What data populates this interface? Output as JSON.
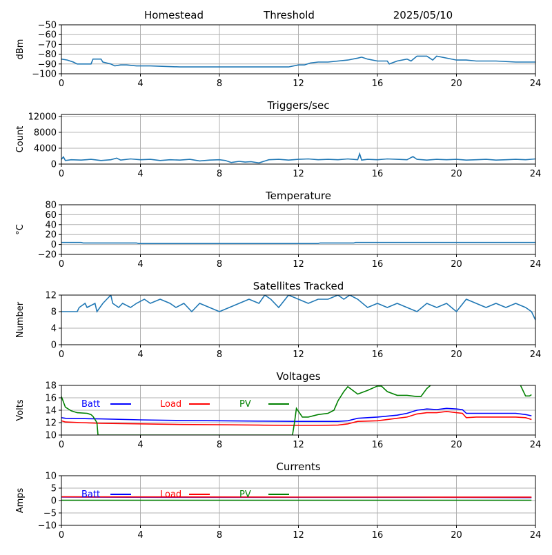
{
  "header": {
    "station": "Homestead",
    "mode": "Threshold",
    "date": "2025/05/10"
  },
  "colors": {
    "line": "#1f77b4",
    "batt": "#0000ff",
    "load": "#ff0000",
    "pv": "#008000",
    "grid": "#b0b0b0"
  },
  "chart_data": [
    {
      "id": "signal",
      "type": "line",
      "title": "",
      "ylabel": "dBm",
      "xlim": [
        0,
        24
      ],
      "ylim": [
        -100,
        -50
      ],
      "xticks": [
        0,
        4,
        8,
        12,
        16,
        20,
        24
      ],
      "xtick_labels": [
        "0",
        "4",
        "8",
        "12",
        "16",
        "20",
        "24"
      ],
      "yticks": [
        -100,
        -90,
        -80,
        -70,
        -60,
        -50
      ],
      "ytick_labels": [
        "−100",
        "−90",
        "−80",
        "−70",
        "−60",
        "−50"
      ],
      "grid": true,
      "series": [
        {
          "color": "#1f77b4",
          "x": [
            0,
            0.3,
            0.6,
            0.8,
            1.0,
            1.5,
            1.6,
            2.0,
            2.1,
            2.5,
            2.7,
            3.0,
            3.3,
            3.8,
            4.5,
            6,
            8,
            10,
            11.5,
            12,
            12.3,
            12.6,
            13,
            13.5,
            14.5,
            15,
            15.2,
            15.5,
            16,
            16.5,
            16.6,
            17,
            17.5,
            17.7,
            18,
            18.5,
            18.8,
            19,
            20,
            20.5,
            21,
            22,
            23,
            23.5,
            24
          ],
          "y": [
            -85,
            -86,
            -88,
            -90,
            -90,
            -90,
            -85,
            -85,
            -88,
            -90,
            -92,
            -91,
            -91,
            -92,
            -92,
            -93,
            -93,
            -93,
            -93,
            -91,
            -91,
            -89,
            -88,
            -88,
            -86,
            -84,
            -83,
            -85,
            -87,
            -87,
            -90,
            -87,
            -85,
            -87,
            -82,
            -82,
            -86,
            -82,
            -86,
            -86,
            -87,
            -87,
            -88,
            -88,
            -88
          ]
        }
      ]
    },
    {
      "id": "triggers",
      "type": "line",
      "title": "Triggers/sec",
      "ylabel": "Count",
      "xlim": [
        0,
        24
      ],
      "ylim": [
        0,
        12500
      ],
      "xticks": [
        0,
        4,
        8,
        12,
        16,
        20,
        24
      ],
      "xtick_labels": [
        "0",
        "4",
        "8",
        "12",
        "16",
        "20",
        "24"
      ],
      "yticks": [
        0,
        4000,
        8000,
        12000
      ],
      "ytick_labels": [
        "0",
        "4000",
        "8000",
        "12000"
      ],
      "grid": true,
      "series": [
        {
          "color": "#1f77b4",
          "x": [
            0,
            0.1,
            0.2,
            0.5,
            1,
            1.5,
            2,
            2.5,
            2.8,
            3,
            3.5,
            4,
            4.5,
            5,
            5.5,
            6,
            6.5,
            7,
            7.5,
            8,
            8.3,
            8.6,
            9,
            9.3,
            9.6,
            10,
            10.5,
            11,
            11.5,
            12,
            12.5,
            13,
            13.5,
            14,
            14.5,
            15,
            15.1,
            15.2,
            15.5,
            16,
            16.5,
            17,
            17.5,
            17.8,
            18,
            18.5,
            19,
            19.5,
            20,
            20.5,
            21,
            21.5,
            22,
            22.5,
            23,
            23.5,
            24
          ],
          "y": [
            1200,
            1800,
            900,
            1100,
            1000,
            1200,
            900,
            1100,
            1500,
            1000,
            1300,
            1100,
            1200,
            900,
            1100,
            1000,
            1200,
            800,
            1000,
            1100,
            900,
            400,
            700,
            500,
            600,
            300,
            1100,
            1200,
            1000,
            1200,
            1300,
            1100,
            1200,
            1100,
            1300,
            1100,
            2600,
            1000,
            1200,
            1100,
            1300,
            1200,
            1100,
            1900,
            1200,
            1000,
            1200,
            1100,
            1200,
            1000,
            1100,
            1200,
            1000,
            1100,
            1200,
            1100,
            1300
          ]
        }
      ]
    },
    {
      "id": "temperature",
      "type": "line",
      "title": "Temperature",
      "ylabel": "°C",
      "xlim": [
        0,
        24
      ],
      "ylim": [
        -20,
        80
      ],
      "xticks": [
        0,
        4,
        8,
        12,
        16,
        20,
        24
      ],
      "xtick_labels": [
        "0",
        "4",
        "8",
        "12",
        "16",
        "20",
        "24"
      ],
      "yticks": [
        -20,
        0,
        20,
        40,
        60,
        80
      ],
      "ytick_labels": [
        "−20",
        "0",
        "20",
        "40",
        "60",
        "80"
      ],
      "grid": true,
      "series": [
        {
          "color": "#1f77b4",
          "x": [
            0,
            1,
            1.1,
            3.8,
            3.9,
            13,
            13.1,
            14.8,
            14.9,
            24
          ],
          "y": [
            4,
            4,
            3,
            3,
            2,
            2,
            3,
            3,
            4,
            4
          ]
        }
      ]
    },
    {
      "id": "satellites",
      "type": "line",
      "title": "Satellites Tracked",
      "ylabel": "Number",
      "xlim": [
        0,
        24
      ],
      "ylim": [
        0,
        12
      ],
      "xticks": [
        0,
        4,
        8,
        12,
        16,
        20,
        24
      ],
      "xtick_labels": [
        "0",
        "4",
        "8",
        "12",
        "16",
        "20",
        "24"
      ],
      "yticks": [
        0,
        4,
        8,
        12
      ],
      "ytick_labels": [
        "0",
        "4",
        "8",
        "12"
      ],
      "grid": true,
      "series": [
        {
          "color": "#1f77b4",
          "x": [
            0,
            0.8,
            0.9,
            1.2,
            1.3,
            1.7,
            1.8,
            2.1,
            2.3,
            2.5,
            2.6,
            2.9,
            3.1,
            3.5,
            3.8,
            4.2,
            4.5,
            5,
            5.5,
            5.8,
            6.2,
            6.6,
            7,
            7.5,
            8,
            8.5,
            9,
            9.5,
            10,
            10.3,
            10.6,
            11,
            11.5,
            12,
            12.5,
            13,
            13.5,
            14,
            14.3,
            14.6,
            15,
            15.5,
            16,
            16.5,
            17,
            17.5,
            18,
            18.5,
            19,
            19.5,
            20,
            20.5,
            21,
            21.5,
            22,
            22.5,
            23,
            23.5,
            23.8,
            24
          ],
          "y": [
            8,
            8,
            9,
            10,
            9,
            10,
            8,
            10,
            11,
            12,
            10,
            9,
            10,
            9,
            10,
            11,
            10,
            11,
            10,
            9,
            10,
            8,
            10,
            9,
            8,
            9,
            10,
            11,
            10,
            12,
            11,
            9,
            12,
            11,
            10,
            11,
            11,
            12,
            11,
            12,
            11,
            9,
            10,
            9,
            10,
            9,
            8,
            10,
            9,
            10,
            8,
            11,
            10,
            9,
            10,
            9,
            10,
            9,
            8,
            6
          ]
        }
      ]
    },
    {
      "id": "voltages",
      "type": "line",
      "title": "Voltages",
      "ylabel": "Volts",
      "xlim": [
        0,
        24
      ],
      "ylim": [
        10,
        18
      ],
      "xticks": [
        0,
        4,
        8,
        12,
        16,
        20,
        24
      ],
      "xtick_labels": [
        "0",
        "4",
        "8",
        "12",
        "16",
        "20",
        "24"
      ],
      "yticks": [
        10,
        12,
        14,
        16,
        18
      ],
      "ytick_labels": [
        "10",
        "12",
        "14",
        "16",
        "18"
      ],
      "grid": true,
      "legend": [
        "Batt",
        "Load",
        "PV"
      ],
      "series": [
        {
          "name": "Batt",
          "color": "#0000ff",
          "x": [
            0,
            0.2,
            1,
            2,
            4,
            6,
            8,
            10,
            12,
            13,
            14,
            14.5,
            15,
            16,
            17,
            17.5,
            18,
            18.5,
            19,
            19.5,
            20,
            20.3,
            20.5,
            21,
            22,
            23,
            23.5,
            23.8
          ],
          "y": [
            12.8,
            12.7,
            12.65,
            12.6,
            12.45,
            12.35,
            12.3,
            12.25,
            12.2,
            12.2,
            12.2,
            12.3,
            12.7,
            12.9,
            13.2,
            13.5,
            14,
            14.2,
            14.1,
            14.3,
            14.2,
            14.1,
            13.5,
            13.5,
            13.5,
            13.5,
            13.3,
            13.1
          ]
        },
        {
          "name": "Load",
          "color": "#ff0000",
          "x": [
            0,
            0.2,
            1,
            2,
            4,
            6,
            8,
            10,
            12,
            13,
            14,
            14.5,
            15,
            16,
            17,
            17.5,
            18,
            18.5,
            19,
            19.5,
            20,
            20.3,
            20.5,
            21,
            22,
            23,
            23.5,
            23.8
          ],
          "y": [
            12.3,
            12.1,
            12.0,
            11.9,
            11.8,
            11.7,
            11.65,
            11.6,
            11.55,
            11.55,
            11.6,
            11.8,
            12.2,
            12.3,
            12.7,
            12.9,
            13.4,
            13.6,
            13.6,
            13.8,
            13.6,
            13.5,
            12.8,
            12.9,
            12.9,
            12.9,
            12.8,
            12.5
          ]
        },
        {
          "name": "PV",
          "color": "#008000",
          "x": [
            0,
            0.2,
            0.5,
            0.8,
            1.3,
            1.5,
            1.6,
            1.8,
            1.85,
            11.7,
            11.8,
            11.9,
            12.2,
            12.5,
            13,
            13.5,
            13.8,
            14,
            14.3,
            14.5,
            15,
            15.5,
            16,
            16.2,
            16.5,
            17,
            17.5,
            18,
            18.2,
            18.5,
            18.8,
            23.2,
            23.5,
            23.7,
            23.8
          ],
          "y": [
            16.2,
            14.5,
            13.9,
            13.6,
            13.5,
            13.3,
            13,
            12,
            10,
            10,
            12,
            14.3,
            12.9,
            12.9,
            13.3,
            13.5,
            14,
            15.5,
            17,
            17.8,
            16.6,
            17.2,
            17.9,
            17.9,
            17.0,
            16.4,
            16.4,
            16.2,
            16.2,
            17.5,
            18.3,
            18.3,
            16.3,
            16.3,
            16.5
          ]
        }
      ]
    },
    {
      "id": "currents",
      "type": "line",
      "title": "Currents",
      "ylabel": "Amps",
      "xlim": [
        0,
        24
      ],
      "ylim": [
        -10,
        10
      ],
      "xticks": [
        0,
        4,
        8,
        12,
        16,
        20,
        24
      ],
      "xtick_labels": [
        "0",
        "4",
        "8",
        "12",
        "16",
        "20",
        "24"
      ],
      "yticks": [
        -10,
        -5,
        0,
        5,
        10
      ],
      "ytick_labels": [
        "−10",
        "−5",
        "0",
        "5",
        "10"
      ],
      "grid": true,
      "legend": [
        "Batt",
        "Load",
        "PV"
      ],
      "series": [
        {
          "name": "Batt",
          "color": "#0000ff",
          "x": [
            0,
            6,
            12,
            18,
            23.8
          ],
          "y": [
            1.4,
            1.3,
            1.3,
            1.3,
            1.2
          ]
        },
        {
          "name": "Load",
          "color": "#ff0000",
          "x": [
            0,
            6,
            12,
            18,
            23.8
          ],
          "y": [
            1.5,
            1.45,
            1.4,
            1.4,
            1.35
          ]
        },
        {
          "name": "PV",
          "color": "#008000",
          "x": [
            0,
            6,
            12,
            18,
            23.8
          ],
          "y": [
            0.1,
            0.1,
            0.1,
            0.1,
            0.1
          ]
        }
      ]
    }
  ]
}
